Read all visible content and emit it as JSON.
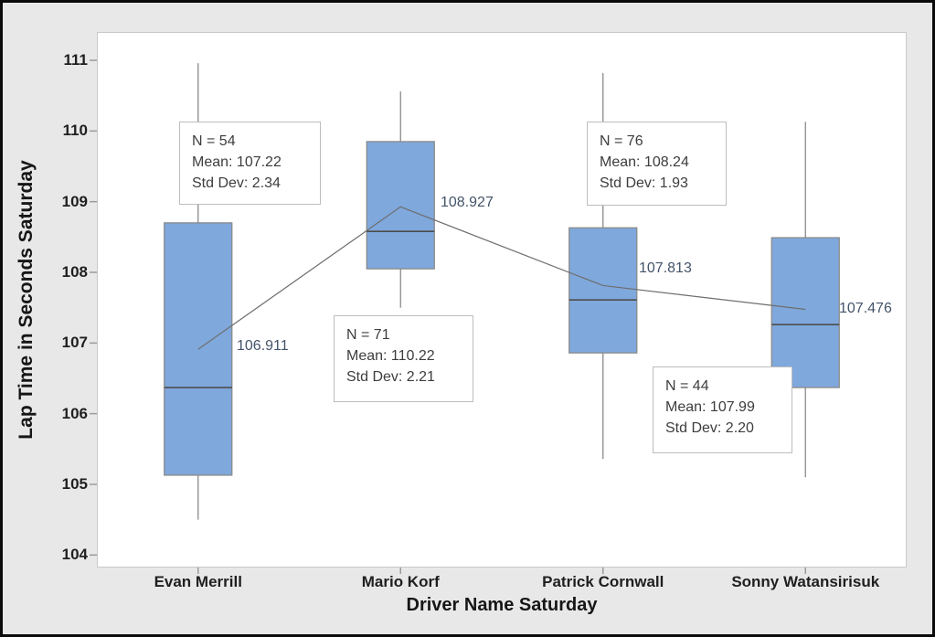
{
  "chart_data": {
    "type": "boxplot",
    "title": "",
    "xlabel": "Driver Name Saturday",
    "ylabel": "Lap Time in Seconds Saturday",
    "categories": [
      "Evan Merrill",
      "Mario Korf",
      "Patrick Cornwall",
      "Sonny Watansirisuk"
    ],
    "y_ticks": [
      111,
      110,
      109,
      108,
      107,
      106,
      105,
      104
    ],
    "ylim": [
      103.8,
      111.4
    ],
    "grid": false,
    "legend": "none",
    "series": [
      {
        "name": "Evan Merrill",
        "n": 54,
        "mean": 107.22,
        "std_dev": 2.34,
        "whisker_low": 104.5,
        "q1": 105.13,
        "median": 106.37,
        "q3": 108.7,
        "whisker_high": 110.96,
        "connect_mean": 106.911,
        "connect_label": "106.911",
        "annotation_lines": [
          "N = 54",
          "Mean: 107.22",
          "Std Dev: 2.34"
        ]
      },
      {
        "name": "Mario Korf",
        "n": 71,
        "mean": 110.22,
        "std_dev": 2.21,
        "whisker_low": 107.5,
        "q1": 108.05,
        "median": 108.58,
        "q3": 109.85,
        "whisker_high": 110.56,
        "connect_mean": 108.927,
        "connect_label": "108.927",
        "annotation_lines": [
          "N = 71",
          "Mean: 110.22",
          "Std Dev: 2.21"
        ]
      },
      {
        "name": "Patrick Cornwall",
        "n": 76,
        "mean": 108.24,
        "std_dev": 1.93,
        "whisker_low": 105.36,
        "q1": 106.86,
        "median": 107.61,
        "q3": 108.63,
        "whisker_high": 110.82,
        "connect_mean": 107.813,
        "connect_label": "107.813",
        "annotation_lines": [
          "N = 76",
          "Mean: 108.24",
          "Std Dev: 1.93"
        ]
      },
      {
        "name": "Sonny Watansirisuk",
        "n": 44,
        "mean": 107.99,
        "std_dev": 2.2,
        "whisker_low": 105.1,
        "q1": 106.37,
        "median": 107.26,
        "q3": 108.49,
        "whisker_high": 110.13,
        "connect_mean": 107.476,
        "connect_label": "107.476",
        "annotation_lines": [
          "N = 44",
          "Mean: 107.99",
          "Std Dev: 2.20"
        ]
      }
    ],
    "colors": {
      "box_fill": "#7fa8dc",
      "box_stroke": "#8a8a8a",
      "median": "#4d4d4d",
      "connect_line": "#6e6e6e",
      "tick": "#9b9b9b",
      "mean_label": "#44546a",
      "background": "#e8e8e8",
      "plot_background": "#ffffff"
    }
  }
}
